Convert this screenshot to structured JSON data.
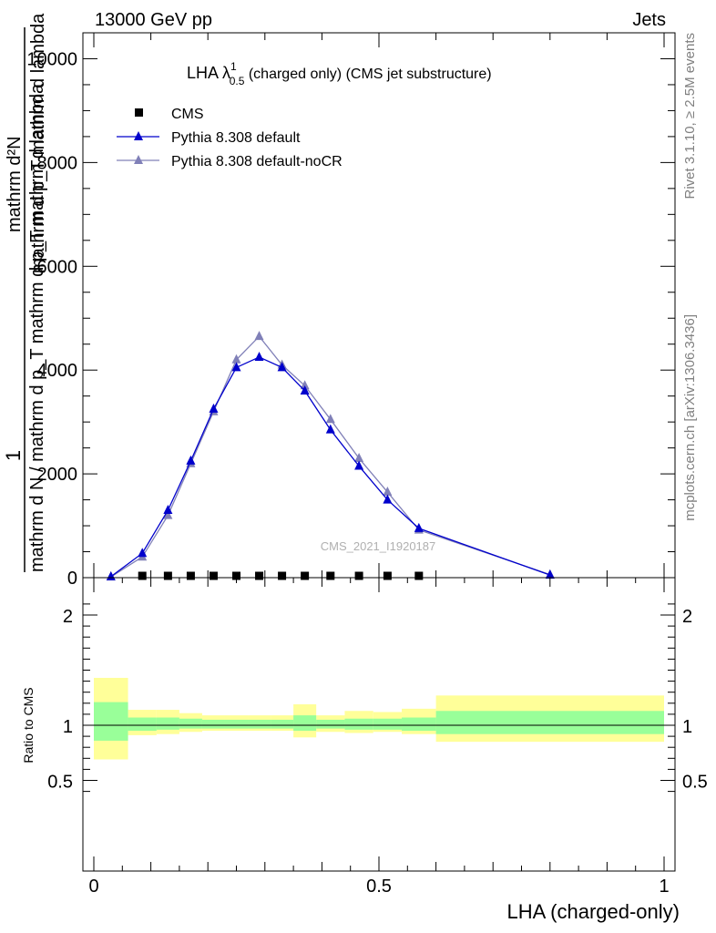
{
  "header": {
    "left": "13000 GeV pp",
    "right": "Jets"
  },
  "side_labels": {
    "rivet": "Rivet 3.1.10, ≥ 2.5M events",
    "mcplots": "mcplots.cern.ch [arXiv:1306.3436]"
  },
  "watermark": "CMS_2021_I1920187",
  "chart_data": [
    {
      "type": "line",
      "title": "LHA λ¹₀.₅ (charged only) (CMS jet substructure)",
      "title_main": "LHA λ",
      "title_sup": "1",
      "title_sub": "0.5",
      "title_rest": " (charged only) (CMS jet substructure)",
      "ylabel_num": "1",
      "ylabel_den": "mathrm d N / mathrm d p_T mathrm d p_T mathrm d lambda",
      "ylabel_line2": "mathrm d²N",
      "ylabel_line3": "mathrm d p_T mathrm d lambda",
      "xlim": [
        0,
        1
      ],
      "ylim": [
        0,
        10500
      ],
      "yticks": [
        0,
        2000,
        4000,
        6000,
        8000,
        10000
      ],
      "ytick_labels": [
        "0",
        "2000",
        "4000",
        "6000",
        "8000",
        "10000"
      ],
      "legend_placement": "top-left",
      "series": [
        {
          "name": "CMS",
          "marker": "square",
          "color": "#000000",
          "x": [
            0.085,
            0.13,
            0.17,
            0.21,
            0.25,
            0.29,
            0.33,
            0.37,
            0.415,
            0.465,
            0.515,
            0.57
          ],
          "y": [
            10,
            10,
            10,
            10,
            10,
            10,
            10,
            10,
            10,
            10,
            10,
            10
          ]
        },
        {
          "name": "Pythia 8.308 default",
          "marker": "triangle",
          "color": "#0000cc",
          "x": [
            0.03,
            0.085,
            0.13,
            0.17,
            0.21,
            0.25,
            0.29,
            0.33,
            0.37,
            0.415,
            0.465,
            0.515,
            0.57,
            0.8
          ],
          "y": [
            20,
            470,
            1300,
            2250,
            3250,
            4050,
            4250,
            4050,
            3600,
            2850,
            2150,
            1500,
            950,
            50
          ]
        },
        {
          "name": "Pythia 8.308 default-noCR",
          "marker": "triangle",
          "color": "#8080b8",
          "x": [
            0.03,
            0.085,
            0.13,
            0.17,
            0.21,
            0.25,
            0.29,
            0.33,
            0.37,
            0.415,
            0.465,
            0.515,
            0.57,
            0.8
          ],
          "y": [
            15,
            400,
            1200,
            2200,
            3200,
            4200,
            4650,
            4100,
            3700,
            3050,
            2300,
            1650,
            920,
            60
          ]
        }
      ]
    },
    {
      "type": "area",
      "ylabel": "Ratio to CMS",
      "xlabel": "LHA (charged-only)",
      "xlim": [
        0,
        1
      ],
      "xticks": [
        0,
        0.5,
        1
      ],
      "xtick_labels": [
        "0",
        "0.5",
        "1"
      ],
      "ylim": [
        0.35,
        2.25
      ],
      "yticks": [
        0.5,
        1,
        2
      ],
      "ytick_labels": [
        "0.5",
        "1",
        "2"
      ],
      "reference_line": 1,
      "bins": [
        0,
        0.06,
        0.11,
        0.15,
        0.19,
        0.23,
        0.27,
        0.31,
        0.35,
        0.39,
        0.44,
        0.49,
        0.54,
        0.6,
        1.0
      ],
      "band_outer_lo": [
        0.69,
        0.91,
        0.92,
        0.94,
        0.95,
        0.95,
        0.95,
        0.95,
        0.89,
        0.94,
        0.93,
        0.94,
        0.92,
        0.85
      ],
      "band_outer_hi": [
        1.43,
        1.14,
        1.14,
        1.11,
        1.09,
        1.09,
        1.09,
        1.09,
        1.19,
        1.09,
        1.13,
        1.12,
        1.15,
        1.27
      ],
      "band_inner_lo": [
        0.86,
        0.95,
        0.96,
        0.97,
        0.97,
        0.97,
        0.97,
        0.97,
        0.95,
        0.97,
        0.96,
        0.96,
        0.95,
        0.92
      ],
      "band_inner_hi": [
        1.21,
        1.07,
        1.07,
        1.06,
        1.05,
        1.05,
        1.05,
        1.05,
        1.09,
        1.05,
        1.06,
        1.06,
        1.07,
        1.13
      ],
      "colors": {
        "outer": "#ffff99",
        "inner": "#99ff99",
        "line": "#000000"
      }
    }
  ]
}
